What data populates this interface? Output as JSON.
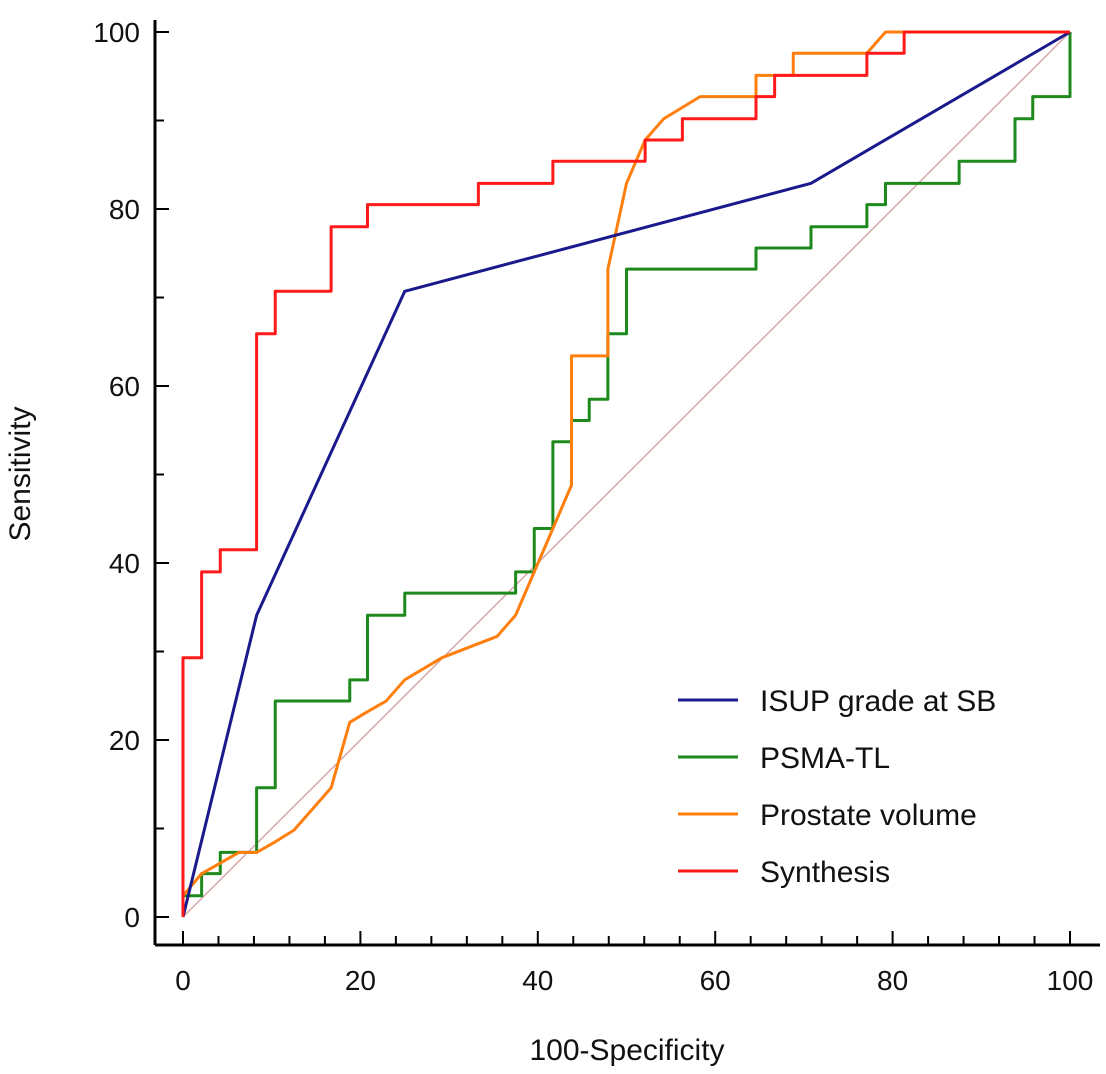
{
  "chart_data": {
    "type": "line",
    "title": "",
    "xlabel": "100-Specificity",
    "ylabel": "Sensitivity",
    "xlim": [
      0,
      100
    ],
    "ylim": [
      0,
      100
    ],
    "xticks": [
      0,
      20,
      40,
      60,
      80,
      100
    ],
    "yticks": [
      0,
      20,
      40,
      60,
      80,
      100
    ],
    "legend_position": "bottom-right",
    "reference_line": {
      "name": "Reference",
      "color": "#d8a8a8",
      "points": [
        [
          0,
          0
        ],
        [
          100,
          100
        ]
      ]
    },
    "series": [
      {
        "name": "ISUP grade at SB",
        "color": "#1a1a8c",
        "step": false,
        "points": [
          [
            0,
            0
          ],
          [
            8.3,
            34.1
          ],
          [
            25,
            70.7
          ],
          [
            70.8,
            82.9
          ],
          [
            100,
            100
          ]
        ]
      },
      {
        "name": "PSMA-TL",
        "color": "#1e8a1e",
        "step": true,
        "points": [
          [
            0,
            0
          ],
          [
            0,
            2.4
          ],
          [
            2.1,
            2.4
          ],
          [
            2.1,
            4.9
          ],
          [
            4.2,
            4.9
          ],
          [
            4.2,
            7.3
          ],
          [
            8.3,
            7.3
          ],
          [
            8.3,
            14.6
          ],
          [
            10.4,
            14.6
          ],
          [
            10.4,
            24.4
          ],
          [
            18.8,
            24.4
          ],
          [
            18.8,
            26.8
          ],
          [
            20.8,
            26.8
          ],
          [
            20.8,
            34.1
          ],
          [
            25,
            34.1
          ],
          [
            25,
            36.6
          ],
          [
            37.5,
            36.6
          ],
          [
            37.5,
            39.0
          ],
          [
            39.6,
            39.0
          ],
          [
            39.6,
            43.9
          ],
          [
            41.7,
            43.9
          ],
          [
            41.7,
            53.7
          ],
          [
            43.8,
            53.7
          ],
          [
            43.8,
            56.1
          ],
          [
            45.8,
            56.1
          ],
          [
            45.8,
            58.5
          ],
          [
            47.9,
            58.5
          ],
          [
            47.9,
            65.9
          ],
          [
            50,
            65.9
          ],
          [
            50,
            73.2
          ],
          [
            64.6,
            73.2
          ],
          [
            64.6,
            75.6
          ],
          [
            70.8,
            75.6
          ],
          [
            70.8,
            78.0
          ],
          [
            77.1,
            78.0
          ],
          [
            77.1,
            80.5
          ],
          [
            79.2,
            80.5
          ],
          [
            79.2,
            82.9
          ],
          [
            87.5,
            82.9
          ],
          [
            87.5,
            85.4
          ],
          [
            93.8,
            85.4
          ],
          [
            93.8,
            90.2
          ],
          [
            95.8,
            90.2
          ],
          [
            95.8,
            92.7
          ],
          [
            100,
            92.7
          ],
          [
            100,
            100
          ]
        ]
      },
      {
        "name": "Prostate volume",
        "color": "#ff7f0e",
        "step": false,
        "points": [
          [
            0,
            0
          ],
          [
            0,
            2.4
          ],
          [
            2.1,
            4.9
          ],
          [
            4.2,
            6.1
          ],
          [
            6.3,
            7.3
          ],
          [
            8.3,
            7.3
          ],
          [
            10.4,
            8.5
          ],
          [
            12.5,
            9.8
          ],
          [
            14.6,
            12.2
          ],
          [
            16.7,
            14.6
          ],
          [
            18.8,
            22.0
          ],
          [
            20.8,
            23.2
          ],
          [
            22.9,
            24.4
          ],
          [
            25,
            26.8
          ],
          [
            29.2,
            29.3
          ],
          [
            35.4,
            31.7
          ],
          [
            37.5,
            34.1
          ],
          [
            39.6,
            39.0
          ],
          [
            41.7,
            43.9
          ],
          [
            43.8,
            48.8
          ],
          [
            43.8,
            63.4
          ],
          [
            47.9,
            63.4
          ],
          [
            47.9,
            73.2
          ],
          [
            50,
            82.9
          ],
          [
            52.1,
            87.8
          ],
          [
            54.2,
            90.2
          ],
          [
            58.3,
            92.7
          ],
          [
            60.4,
            92.7
          ],
          [
            64.6,
            92.7
          ],
          [
            64.6,
            95.1
          ],
          [
            68.8,
            95.1
          ],
          [
            68.8,
            97.6
          ],
          [
            75,
            97.6
          ],
          [
            77.1,
            97.6
          ],
          [
            79.2,
            100
          ],
          [
            100,
            100
          ]
        ]
      },
      {
        "name": "Synthesis",
        "color": "#ff1a1a",
        "step": true,
        "points": [
          [
            0,
            0
          ],
          [
            0,
            29.3
          ],
          [
            2.1,
            29.3
          ],
          [
            2.1,
            39.0
          ],
          [
            4.2,
            39.0
          ],
          [
            4.2,
            41.5
          ],
          [
            8.3,
            41.5
          ],
          [
            8.3,
            65.9
          ],
          [
            10.4,
            65.9
          ],
          [
            10.4,
            70.7
          ],
          [
            16.7,
            70.7
          ],
          [
            16.7,
            78.0
          ],
          [
            20.8,
            78.0
          ],
          [
            20.8,
            80.5
          ],
          [
            33.3,
            80.5
          ],
          [
            33.3,
            82.9
          ],
          [
            41.7,
            82.9
          ],
          [
            41.7,
            85.4
          ],
          [
            52.1,
            85.4
          ],
          [
            52.1,
            87.8
          ],
          [
            56.3,
            87.8
          ],
          [
            56.3,
            90.2
          ],
          [
            64.6,
            90.2
          ],
          [
            64.6,
            92.7
          ],
          [
            66.7,
            92.7
          ],
          [
            66.7,
            95.1
          ],
          [
            77.1,
            95.1
          ],
          [
            77.1,
            97.6
          ],
          [
            81.3,
            97.6
          ],
          [
            81.3,
            100
          ],
          [
            100,
            100
          ]
        ]
      }
    ]
  }
}
